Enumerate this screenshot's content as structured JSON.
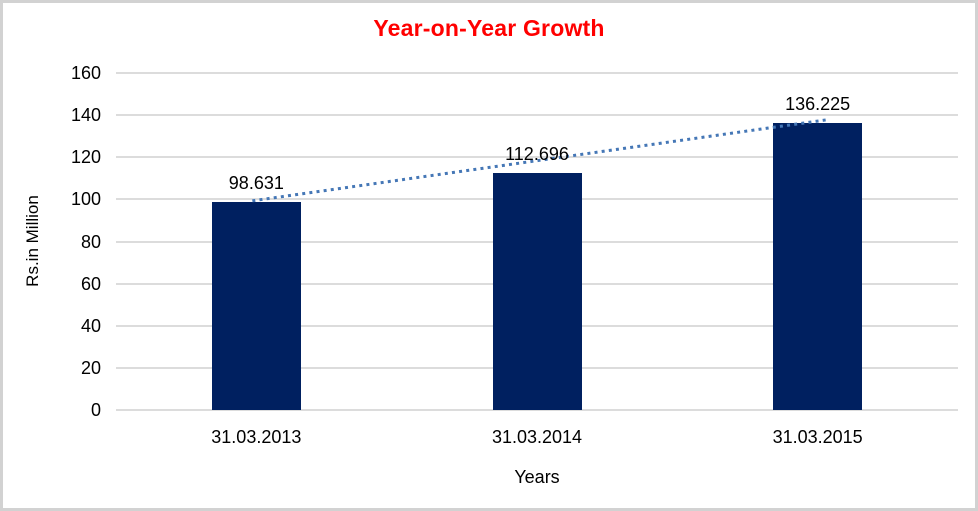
{
  "chart_data": {
    "type": "bar",
    "title": "Year-on-Year Growth",
    "title_color": "#ff0000",
    "xlabel": "Years",
    "ylabel": "Rs.in Million",
    "categories": [
      "31.03.2013",
      "31.03.2014",
      "31.03.2015"
    ],
    "values": [
      98.631,
      112.696,
      136.225
    ],
    "data_labels": [
      "98.631",
      "112.696",
      "136.225"
    ],
    "y_ticks": [
      0,
      20,
      40,
      60,
      80,
      100,
      120,
      140,
      160
    ],
    "ylim": [
      0,
      160
    ],
    "grid": "horizontal-only",
    "legend": "none",
    "bar_color": "#002060",
    "gridline_color": "#dcdcdc",
    "trendline": {
      "style": "dotted-linear",
      "color": "#4577b6",
      "from_value": 98.631,
      "to_value": 136.225
    }
  }
}
